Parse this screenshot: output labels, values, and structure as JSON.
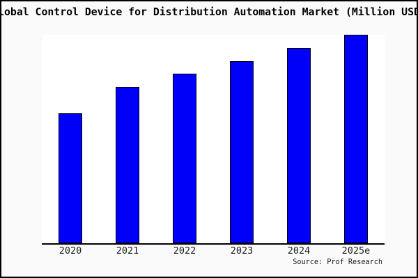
{
  "title": "Global Control Device for Distribution Automation Market (Million USD)",
  "source_label": "Source: Prof Research",
  "colors": {
    "bar_fill": "#0000fa",
    "bar_border": "#000000",
    "plot_background": "#ffffff",
    "outer_background": "#fafafa",
    "axis": "#000000",
    "text": "#1c1c1c"
  },
  "chart_data": {
    "type": "bar",
    "title": "Global Control Device for Distribution Automation Market (Million USD)",
    "categories": [
      "2020",
      "2021",
      "2022",
      "2023",
      "2024",
      "2025e"
    ],
    "values": [
      1000,
      1200,
      1300,
      1400,
      1500,
      1600
    ],
    "xlabel": "",
    "ylabel": "",
    "ylim": [
      0,
      1600
    ],
    "grid": false,
    "legend": false,
    "y_axis_labels_visible": false
  }
}
